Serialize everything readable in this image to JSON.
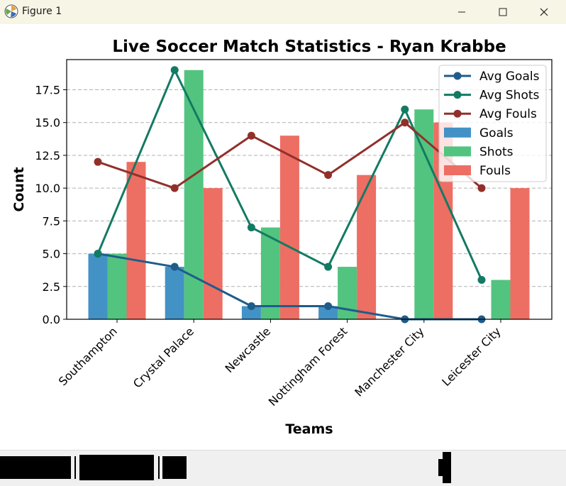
{
  "window": {
    "title": "Figure 1",
    "icons": {
      "app": "matplotlib-figure-icon",
      "minimize": "minimize-icon",
      "maximize": "maximize-icon",
      "close": "close-icon"
    }
  },
  "chart_data": {
    "type": "bar",
    "title": "Live Soccer Match Statistics - Ryan Krabbe",
    "xlabel": "Teams",
    "ylabel": "Count",
    "categories": [
      "Southampton",
      "Crystal Palace",
      "Newcastle",
      "Nottingham Forest",
      "Manchester City",
      "Leicester City"
    ],
    "ylim": [
      0,
      19.8
    ],
    "yticks": [
      0.0,
      2.5,
      5.0,
      7.5,
      10.0,
      12.5,
      15.0,
      17.5
    ],
    "ytick_labels": [
      "0.0",
      "2.5",
      "5.0",
      "7.5",
      "10.0",
      "12.5",
      "15.0",
      "17.5"
    ],
    "grid": "y-dashed",
    "legend_position": "top-right",
    "bars": [
      {
        "name": "Goals",
        "color": "#4292c6",
        "values": [
          5,
          4,
          1,
          1,
          0,
          0
        ]
      },
      {
        "name": "Shots",
        "color": "#52c47f",
        "values": [
          5,
          19,
          7,
          4,
          16,
          3
        ]
      },
      {
        "name": "Fouls",
        "color": "#ed6e63",
        "values": [
          12,
          10,
          14,
          11,
          15,
          10
        ]
      }
    ],
    "lines": [
      {
        "name": "Avg Goals",
        "color": "#1f5c8a",
        "values": [
          5,
          4,
          1,
          1,
          0,
          0
        ]
      },
      {
        "name": "Avg Shots",
        "color": "#137a63",
        "values": [
          5,
          19,
          7,
          4,
          16,
          3
        ]
      },
      {
        "name": "Avg Fouls",
        "color": "#91302b",
        "values": [
          12,
          10,
          14,
          11,
          15,
          10
        ]
      }
    ],
    "legend_order": [
      "Avg Goals",
      "Avg Shots",
      "Avg Fouls",
      "Goals",
      "Shots",
      "Fouls"
    ]
  }
}
